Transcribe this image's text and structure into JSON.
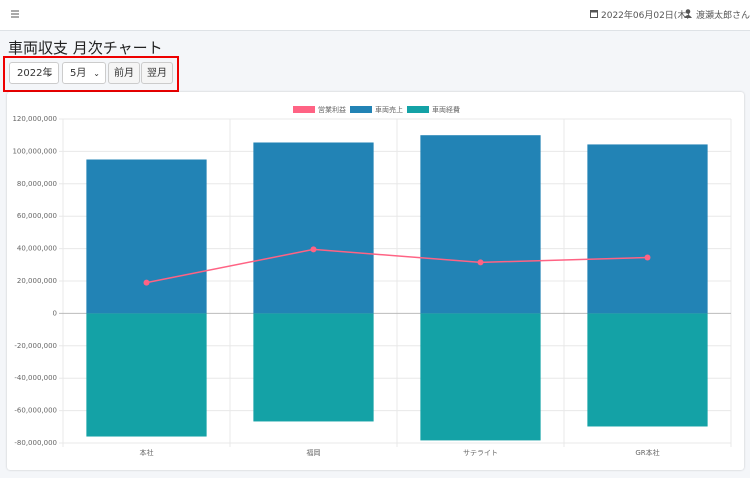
{
  "header": {
    "date": "2022年06月02日(木)",
    "user": "渡瀬太郎さん"
  },
  "page": {
    "title": "車両収支 月次チャート",
    "controls": {
      "year": "2022年",
      "month": "5月",
      "prev": "前月",
      "next": "翌月"
    }
  },
  "chart_data": {
    "type": "bar",
    "categories": [
      "本社",
      "福岡",
      "サテライト",
      "GR本社"
    ],
    "series": [
      {
        "name": "営業利益",
        "type": "line",
        "color": "#ff6384",
        "values": [
          19000000,
          39500000,
          31500000,
          34500000
        ]
      },
      {
        "name": "車両売上",
        "type": "bar",
        "color": "#2283b5",
        "values": [
          95000000,
          105500000,
          110000000,
          104300000
        ]
      },
      {
        "name": "車両経費",
        "type": "bar",
        "color": "#14a2a6",
        "values": [
          -76000000,
          -66700000,
          -78400000,
          -69800000
        ]
      }
    ],
    "ylim": [
      -80000000,
      120000000
    ],
    "yticks": [
      {
        "value": -80000000,
        "label": "-80,000,000"
      },
      {
        "value": -60000000,
        "label": "-60,000,000"
      },
      {
        "value": -40000000,
        "label": "-40,000,000"
      },
      {
        "value": -20000000,
        "label": "-20,000,000"
      },
      0,
      {
        "value": 20000000,
        "label": "20,000,000"
      },
      {
        "value": 40000000,
        "label": "40,000,000"
      },
      {
        "value": 60000000,
        "label": "60,000,000"
      },
      {
        "value": 80000000,
        "label": "80,000,000"
      },
      {
        "value": 100000000,
        "label": "100,000,000"
      },
      {
        "value": 120000000,
        "label": "120,000,000"
      }
    ],
    "grid": true,
    "legend": "top"
  }
}
